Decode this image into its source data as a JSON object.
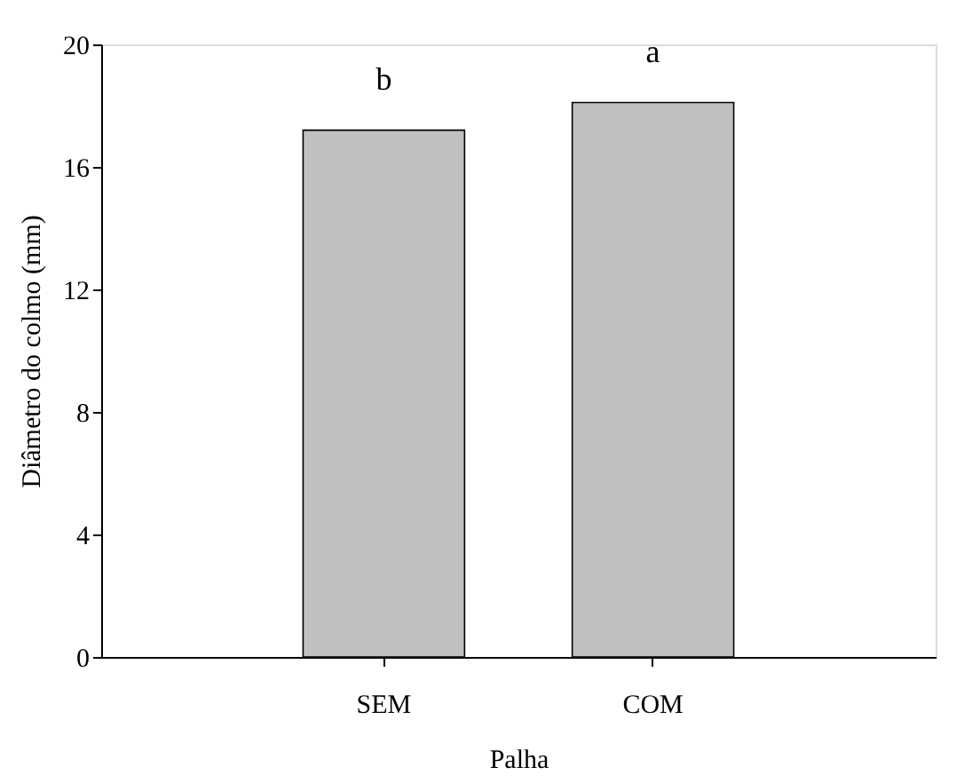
{
  "chart_data": {
    "type": "bar",
    "xlabel": "Palha",
    "ylabel": "Diâmetro do colmo (mm)",
    "categories": [
      "SEM",
      "COM"
    ],
    "values": [
      17.2,
      18.1
    ],
    "color": "#c0c0c0",
    "ylim": [
      0,
      20
    ],
    "yticks": [
      0,
      4,
      8,
      12,
      16,
      20
    ],
    "grid": false,
    "annotations": [
      "b",
      "a"
    ]
  }
}
